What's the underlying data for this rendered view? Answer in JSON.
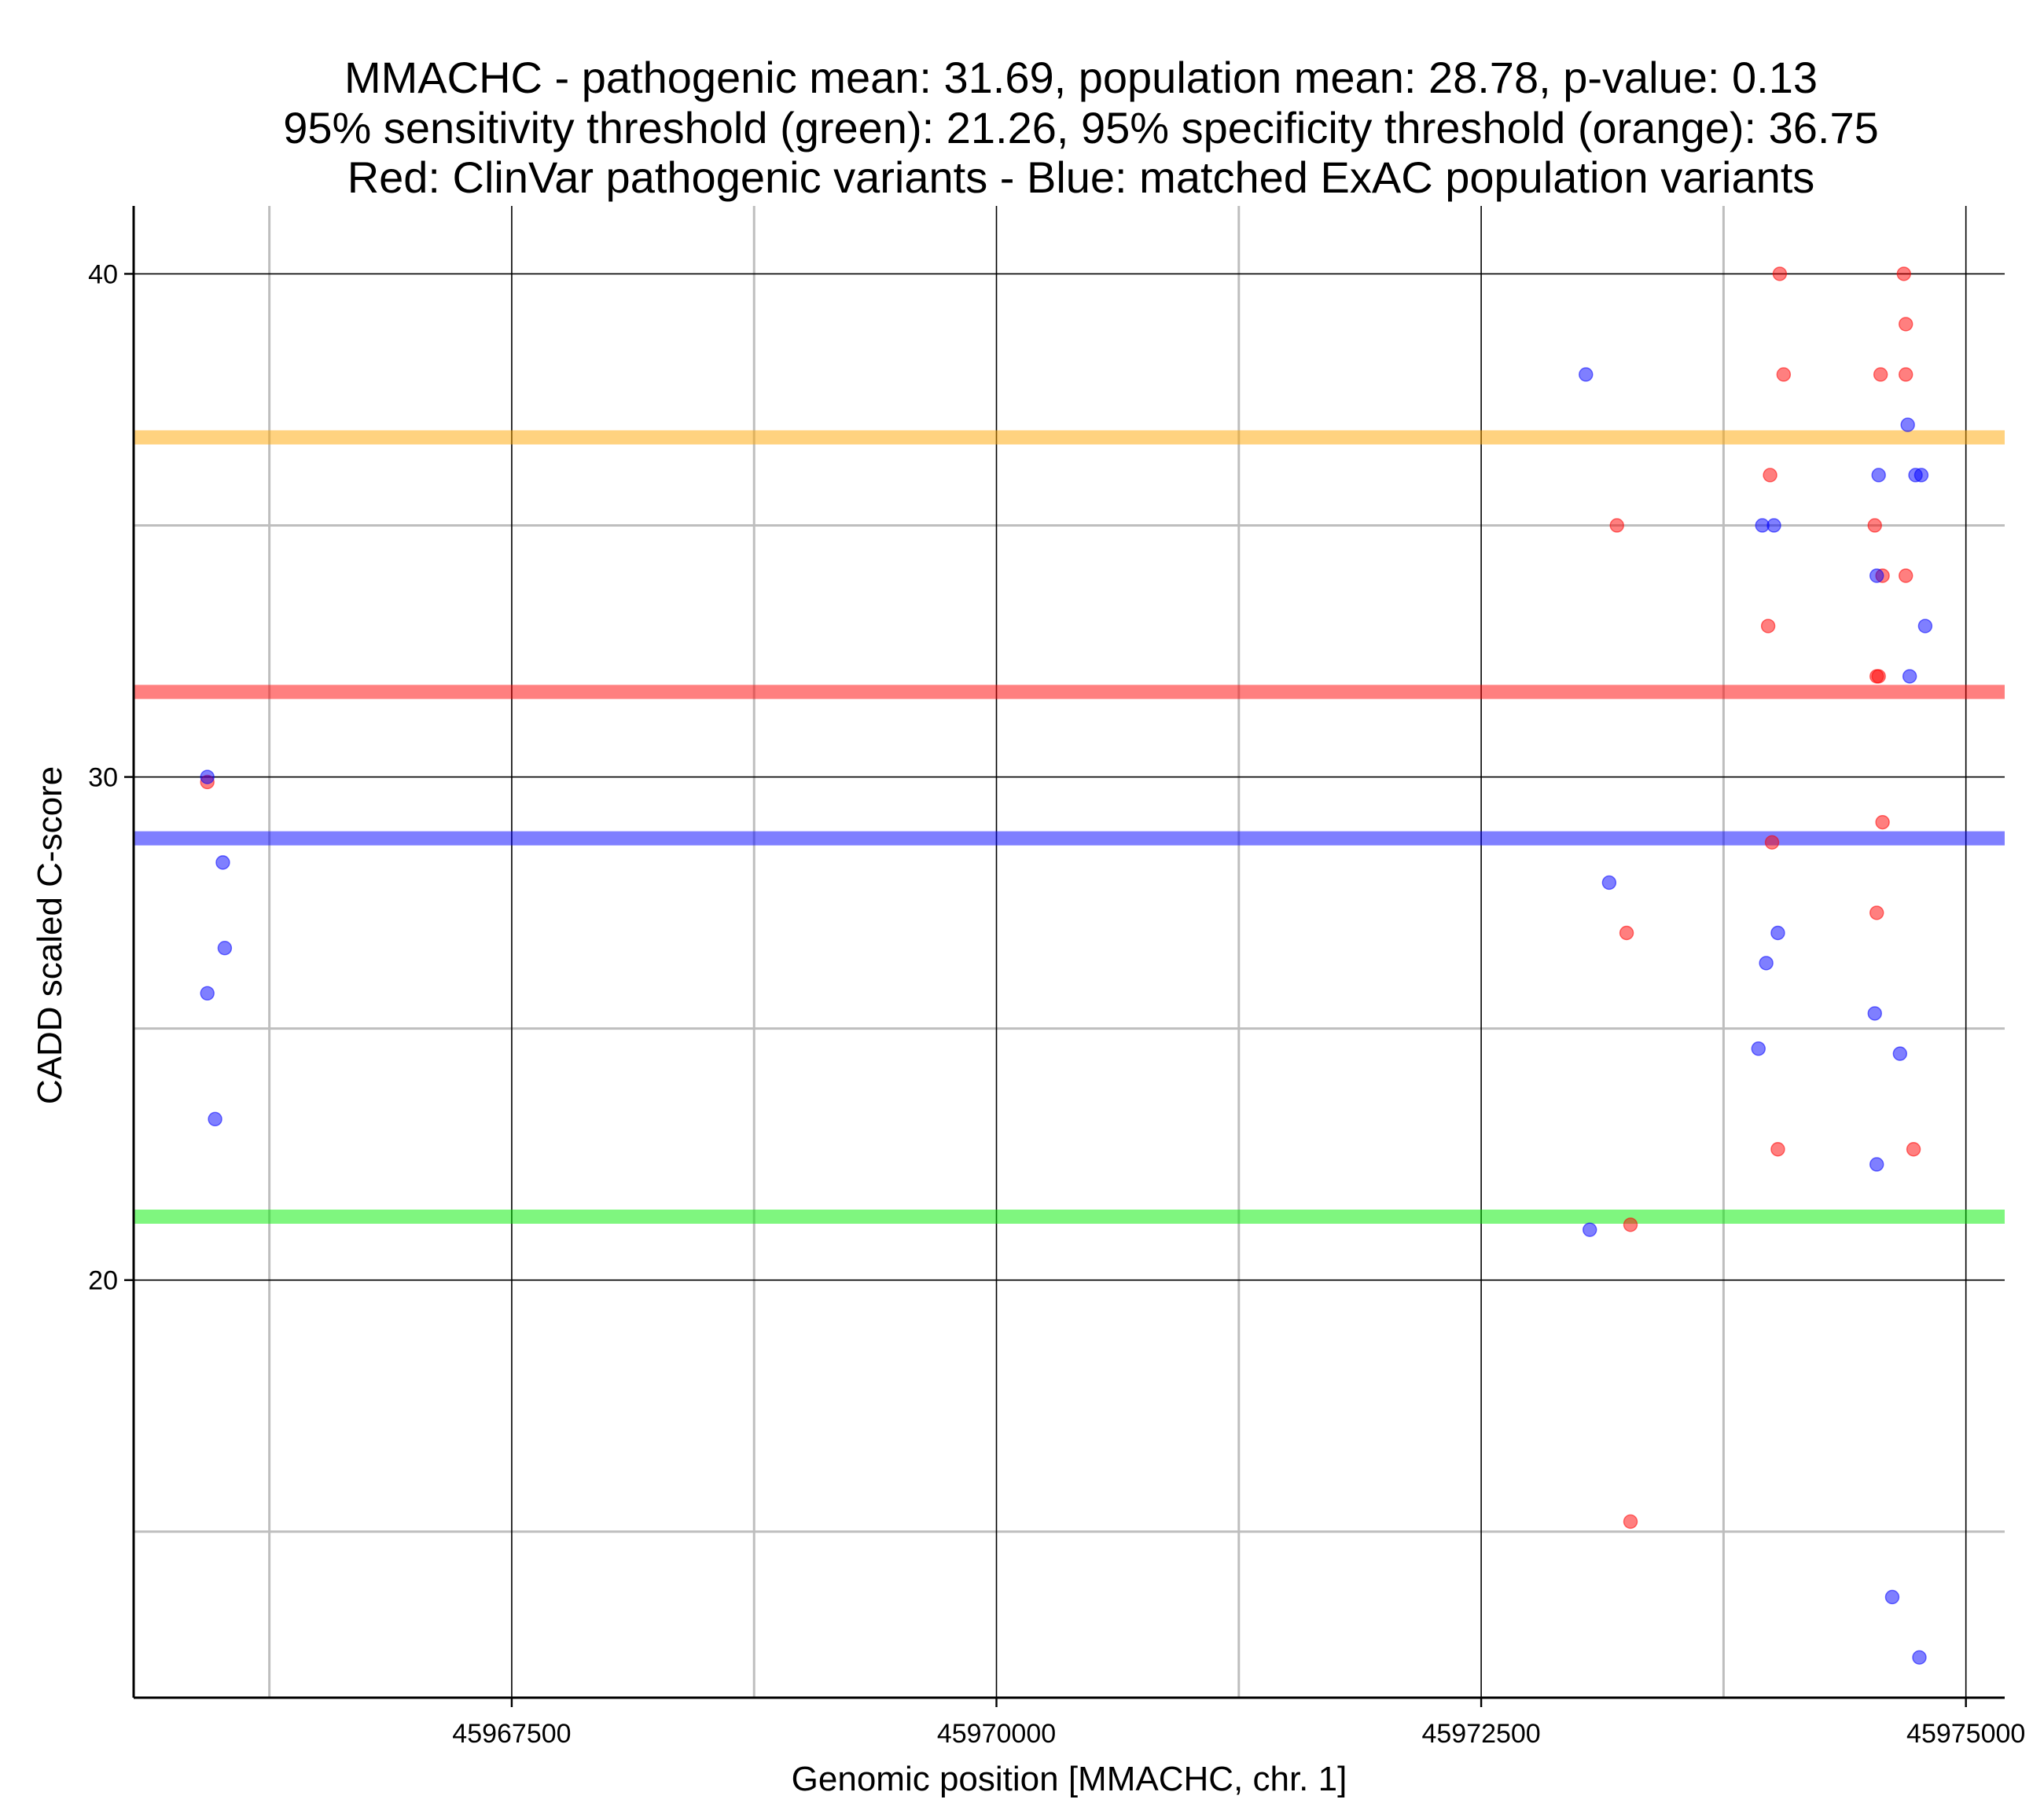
{
  "chart_data": {
    "type": "scatter",
    "title_lines": [
      "MMACHC - pathogenic mean: 31.69, population mean: 28.78, p-value: 0.13",
      "95% sensitivity threshold (green): 21.26, 95% specificity threshold (orange): 36.75",
      "Red: ClinVar pathogenic variants - Blue: matched ExAC population variants"
    ],
    "xlabel": "Genomic position [MMACHC, chr. 1]",
    "ylabel": "CADD scaled C-score",
    "xlim": [
      45965550,
      45975200
    ],
    "ylim": [
      11.7,
      41.35
    ],
    "x_major_ticks": [
      45967500,
      45970000,
      45972500,
      45975000
    ],
    "x_major_tick_labels": [
      "45967500",
      "45970000",
      "45972500",
      "45975000"
    ],
    "x_minor_ticks": [
      45966250,
      45968750,
      45971250,
      45973750
    ],
    "y_major_ticks": [
      20,
      30,
      40
    ],
    "y_major_tick_labels": [
      "20",
      "30",
      "40"
    ],
    "y_minor_ticks": [
      15,
      25,
      35
    ],
    "colors": {
      "pathogenic": "#ff0000",
      "population": "#0000ff",
      "sensitivity": "#00ee00",
      "specificity": "#ffa500",
      "major_grid": "#000000",
      "minor_grid": "#bebebe"
    },
    "reference_lines": [
      {
        "name": "specificity-threshold",
        "value": 36.75,
        "color": "#ffa500"
      },
      {
        "name": "pathogenic-mean",
        "value": 31.69,
        "color": "#ff0000"
      },
      {
        "name": "population-mean",
        "value": 28.78,
        "color": "#0000ff"
      },
      {
        "name": "sensitivity-threshold",
        "value": 21.26,
        "color": "#00ee00"
      }
    ],
    "series": [
      {
        "name": "ClinVar pathogenic variants",
        "color": "#ff0000",
        "points": [
          [
            45965930,
            29.9
          ],
          [
            45973250,
            26.9
          ],
          [
            45973270,
            21.1
          ],
          [
            45973270,
            15.2
          ],
          [
            45973200,
            35.0
          ],
          [
            45973990,
            36.0
          ],
          [
            45974040,
            40.0
          ],
          [
            45974060,
            38.0
          ],
          [
            45973980,
            33.0
          ],
          [
            45974000,
            28.7
          ],
          [
            45974030,
            22.6
          ],
          [
            45974560,
            38.0
          ],
          [
            45974690,
            38.0
          ],
          [
            45974690,
            39.0
          ],
          [
            45974680,
            40.0
          ],
          [
            45974530,
            35.0
          ],
          [
            45974570,
            34.0
          ],
          [
            45974690,
            34.0
          ],
          [
            45974540,
            32.0
          ],
          [
            45974550,
            32.0
          ],
          [
            45974570,
            29.1
          ],
          [
            45974540,
            27.3
          ],
          [
            45974730,
            22.6
          ]
        ]
      },
      {
        "name": "matched ExAC population variants",
        "color": "#0000ff",
        "points": [
          [
            45965930,
            30.0
          ],
          [
            45966010,
            28.3
          ],
          [
            45966020,
            26.6
          ],
          [
            45965930,
            25.7
          ],
          [
            45965970,
            23.2
          ],
          [
            45973040,
            38.0
          ],
          [
            45973060,
            21.0
          ],
          [
            45973160,
            27.9
          ],
          [
            45973950,
            35.0
          ],
          [
            45974010,
            35.0
          ],
          [
            45974030,
            26.9
          ],
          [
            45973970,
            26.3
          ],
          [
            45973930,
            24.6
          ],
          [
            45974550,
            36.0
          ],
          [
            45974740,
            36.0
          ],
          [
            45974770,
            36.0
          ],
          [
            45974700,
            37.0
          ],
          [
            45974540,
            34.0
          ],
          [
            45974790,
            33.0
          ],
          [
            45974710,
            32.0
          ],
          [
            45974530,
            25.3
          ],
          [
            45974660,
            24.5
          ],
          [
            45974540,
            22.3
          ],
          [
            45974620,
            13.7
          ],
          [
            45974760,
            12.5
          ]
        ]
      }
    ]
  }
}
